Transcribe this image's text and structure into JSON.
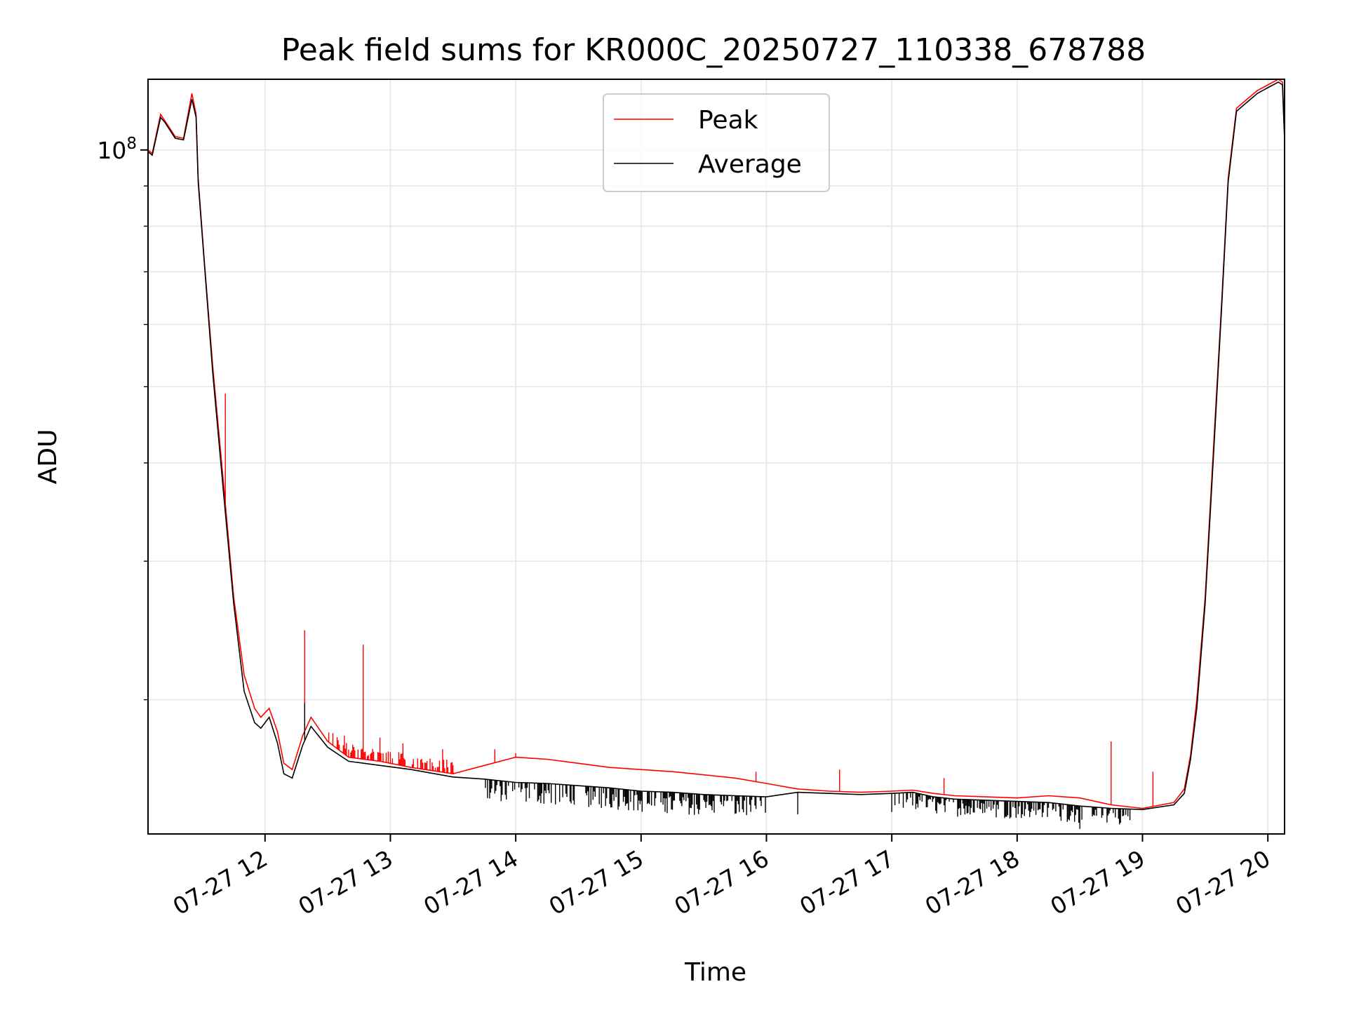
{
  "chart_data": {
    "type": "line",
    "title": "Peak field sums for KR000C_20250727_110338_678788",
    "xlabel": "Time",
    "ylabel": "ADU",
    "y_scale": "log",
    "ylim": [
      13500000,
      123000000
    ],
    "xlim": [
      "07-27 11:04",
      "07-27 20:08"
    ],
    "x_ticks": [
      {
        "t": "07-27 12:00",
        "label": "07-27 12"
      },
      {
        "t": "07-27 13:00",
        "label": "07-27 13"
      },
      {
        "t": "07-27 14:00",
        "label": "07-27 14"
      },
      {
        "t": "07-27 15:00",
        "label": "07-27 15"
      },
      {
        "t": "07-27 16:00",
        "label": "07-27 16"
      },
      {
        "t": "07-27 17:00",
        "label": "07-27 17"
      },
      {
        "t": "07-27 18:00",
        "label": "07-27 18"
      },
      {
        "t": "07-27 19:00",
        "label": "07-27 19"
      },
      {
        "t": "07-27 20:00",
        "label": "07-27 20"
      }
    ],
    "y_major_ticks": [
      {
        "value": 100000000,
        "base": "10",
        "exp": "8"
      }
    ],
    "y_minor_ticks": [
      20000000,
      30000000,
      40000000,
      50000000,
      60000000,
      70000000,
      80000000,
      90000000
    ],
    "grid": true,
    "legend": {
      "position": "upper-center",
      "entries": [
        "Peak",
        "Average"
      ]
    },
    "series": [
      {
        "name": "Peak",
        "color": "#ff0000",
        "x": [
          "07-27 11:04",
          "07-27 11:06",
          "07-27 11:10",
          "07-27 11:12",
          "07-27 11:17",
          "07-27 11:21",
          "07-27 11:25",
          "07-27 11:27",
          "07-27 11:28",
          "07-27 11:31",
          "07-27 11:35",
          "07-27 11:40",
          "07-27 11:45",
          "07-27 11:50",
          "07-27 11:55",
          "07-27 11:58",
          "07-27 12:02",
          "07-27 12:06",
          "07-27 12:09",
          "07-27 12:13",
          "07-27 12:18",
          "07-27 12:22",
          "07-27 12:30",
          "07-27 12:40",
          "07-27 12:55",
          "07-27 13:10",
          "07-27 13:30",
          "07-27 13:45",
          "07-27 14:00",
          "07-27 14:15",
          "07-27 14:30",
          "07-27 14:45",
          "07-27 15:00",
          "07-27 15:15",
          "07-27 15:30",
          "07-27 15:45",
          "07-27 16:00",
          "07-27 16:15",
          "07-27 16:30",
          "07-27 16:45",
          "07-27 17:00",
          "07-27 17:10",
          "07-27 17:20",
          "07-27 17:30",
          "07-27 17:45",
          "07-27 18:00",
          "07-27 18:15",
          "07-27 18:30",
          "07-27 18:45",
          "07-27 19:00",
          "07-27 19:15",
          "07-27 19:20",
          "07-27 19:23",
          "07-27 19:26",
          "07-27 19:30",
          "07-27 19:34",
          "07-27 19:38",
          "07-27 19:41",
          "07-27 19:45",
          "07-27 19:50",
          "07-27 19:55",
          "07-27 20:00",
          "07-27 20:05",
          "07-27 20:07",
          "07-27 20:08"
        ],
        "y": [
          100000000,
          99000000,
          111000000,
          109000000,
          104000000,
          103500000,
          118000000,
          111000000,
          92000000,
          72000000,
          53000000,
          38000000,
          27000000,
          21500000,
          19500000,
          19000000,
          19500000,
          18200000,
          16600000,
          16300000,
          18000000,
          19000000,
          17700000,
          16900000,
          16700000,
          16400000,
          16100000,
          16500000,
          16900000,
          16800000,
          16600000,
          16400000,
          16300000,
          16200000,
          16050000,
          15900000,
          15650000,
          15400000,
          15300000,
          15250000,
          15300000,
          15350000,
          15200000,
          15100000,
          15050000,
          15000000,
          15100000,
          15000000,
          14700000,
          14550000,
          14800000,
          15400000,
          17000000,
          20000000,
          27000000,
          42000000,
          65000000,
          92000000,
          113000000,
          116000000,
          119000000,
          121000000,
          123000000,
          122000000,
          104000000
        ]
      },
      {
        "name": "Average",
        "color": "#000000",
        "x": [
          "07-27 11:04",
          "07-27 11:06",
          "07-27 11:10",
          "07-27 11:12",
          "07-27 11:17",
          "07-27 11:21",
          "07-27 11:25",
          "07-27 11:27",
          "07-27 11:28",
          "07-27 11:31",
          "07-27 11:35",
          "07-27 11:40",
          "07-27 11:45",
          "07-27 11:50",
          "07-27 11:55",
          "07-27 11:58",
          "07-27 12:02",
          "07-27 12:06",
          "07-27 12:09",
          "07-27 12:13",
          "07-27 12:18",
          "07-27 12:22",
          "07-27 12:30",
          "07-27 12:40",
          "07-27 12:55",
          "07-27 13:10",
          "07-27 13:30",
          "07-27 13:45",
          "07-27 14:00",
          "07-27 14:15",
          "07-27 14:30",
          "07-27 14:45",
          "07-27 15:00",
          "07-27 15:15",
          "07-27 15:30",
          "07-27 15:45",
          "07-27 16:00",
          "07-27 16:15",
          "07-27 16:30",
          "07-27 16:45",
          "07-27 17:00",
          "07-27 17:10",
          "07-27 17:20",
          "07-27 17:30",
          "07-27 17:45",
          "07-27 18:00",
          "07-27 18:15",
          "07-27 18:30",
          "07-27 18:45",
          "07-27 19:00",
          "07-27 19:15",
          "07-27 19:20",
          "07-27 19:23",
          "07-27 19:26",
          "07-27 19:30",
          "07-27 19:34",
          "07-27 19:38",
          "07-27 19:41",
          "07-27 19:45",
          "07-27 19:50",
          "07-27 19:55",
          "07-27 20:00",
          "07-27 20:05",
          "07-27 20:07",
          "07-27 20:08"
        ],
        "y": [
          99500000,
          98500000,
          110000000,
          108500000,
          103500000,
          103000000,
          116000000,
          110000000,
          91000000,
          71500000,
          52000000,
          37000000,
          26500000,
          20500000,
          18700000,
          18400000,
          19000000,
          17600000,
          16100000,
          15900000,
          17500000,
          18500000,
          17400000,
          16700000,
          16500000,
          16300000,
          15950000,
          15850000,
          15700000,
          15650000,
          15550000,
          15450000,
          15300000,
          15250000,
          15150000,
          15100000,
          15050000,
          15250000,
          15200000,
          15150000,
          15200000,
          15250000,
          15050000,
          14950000,
          14900000,
          14850000,
          14800000,
          14650000,
          14550000,
          14500000,
          14700000,
          15200000,
          16800000,
          19500000,
          26500000,
          41000000,
          64000000,
          91000000,
          112000000,
          115000000,
          118000000,
          120000000,
          122000000,
          121000000,
          103000000
        ]
      }
    ],
    "noise": [
      {
        "series": "Peak",
        "from": "07-27 12:30",
        "to": "07-27 13:30",
        "direction": "up",
        "min_factor": 1.01,
        "max_factor": 1.04
      },
      {
        "series": "Average",
        "from": "07-27 13:45",
        "to": "07-27 16:00",
        "direction": "down",
        "min_factor": 0.94,
        "max_factor": 0.99
      },
      {
        "series": "Average",
        "from": "07-27 17:00",
        "to": "07-27 18:55",
        "direction": "down",
        "min_factor": 0.95,
        "max_factor": 0.995
      }
    ],
    "spikes": [
      {
        "series": "Peak",
        "t": "07-27 11:41",
        "y": 49000000
      },
      {
        "series": "Peak",
        "t": "07-27 12:19",
        "y": 24500000
      },
      {
        "series": "Peak",
        "t": "07-27 12:47",
        "y": 23500000
      },
      {
        "series": "Peak",
        "t": "07-27 12:38",
        "y": 18000000
      },
      {
        "series": "Peak",
        "t": "07-27 12:55",
        "y": 17900000
      },
      {
        "series": "Peak",
        "t": "07-27 13:06",
        "y": 17600000
      },
      {
        "series": "Peak",
        "t": "07-27 13:25",
        "y": 17300000
      },
      {
        "series": "Peak",
        "t": "07-27 13:50",
        "y": 17300000
      },
      {
        "series": "Peak",
        "t": "07-27 14:00",
        "y": 17100000
      },
      {
        "series": "Peak",
        "t": "07-27 15:55",
        "y": 16200000
      },
      {
        "series": "Peak",
        "t": "07-27 16:35",
        "y": 16300000
      },
      {
        "series": "Peak",
        "t": "07-27 17:25",
        "y": 15900000
      },
      {
        "series": "Peak",
        "t": "07-27 18:45",
        "y": 17700000
      },
      {
        "series": "Peak",
        "t": "07-27 19:05",
        "y": 16200000
      },
      {
        "series": "Average",
        "t": "07-27 12:19",
        "y": 19800000
      },
      {
        "series": "Average",
        "t": "07-27 16:15",
        "y": 14300000
      },
      {
        "series": "Average",
        "t": "07-27 17:00",
        "y": 14400000
      },
      {
        "series": "Average",
        "t": "07-27 18:30",
        "y": 13700000
      }
    ]
  }
}
